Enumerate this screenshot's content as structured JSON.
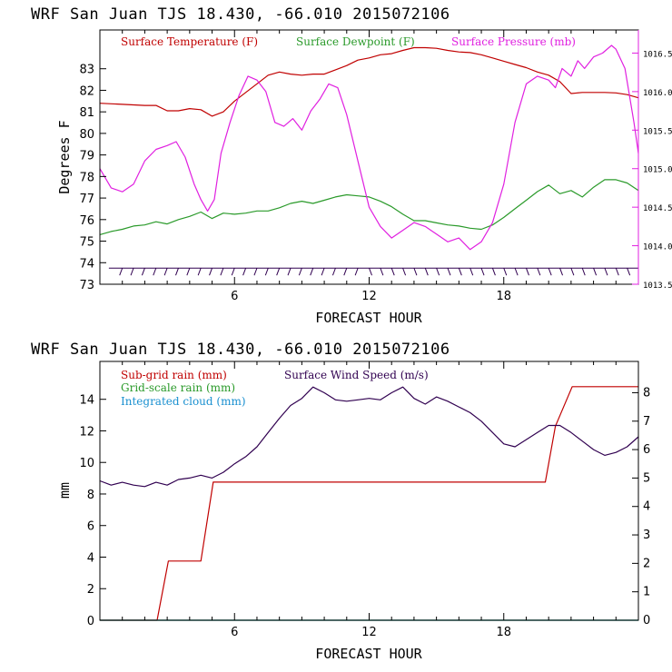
{
  "colors": {
    "temperature": "#c00000",
    "dewpoint": "#2a9a2a",
    "pressure": "#e020e0",
    "subgrid_rain": "#c00000",
    "gridscale_rain": "#2a9a2a",
    "cloud": "#1a90d0",
    "wind": "#300050",
    "barbs": "#300050"
  },
  "chart_data": [
    {
      "type": "line",
      "title": "WRF  San Juan TJS  18.430, -66.010  2015072106",
      "xlabel": "FORECAST HOUR",
      "ylabel": "Degrees F",
      "xlim": [
        0,
        24
      ],
      "ylim": [
        73,
        84.8
      ],
      "y2lim": [
        1013.5,
        1016.8
      ],
      "x_ticks": [
        6,
        12,
        18
      ],
      "y_ticks": [
        73,
        74,
        75,
        76,
        77,
        78,
        79,
        80,
        81,
        82,
        83
      ],
      "y2_ticks": [
        "1013.5",
        "1014.0",
        "1014.5",
        "1015.0",
        "1015.5",
        "1016.0",
        "1016.5"
      ],
      "y2_tick_values": [
        1013.5,
        1014.0,
        1014.5,
        1015.0,
        1015.5,
        1016.0,
        1016.5
      ],
      "legend": [
        "Surface Temperature (F)",
        "Surface Dewpoint (F)",
        "Surface Pressure (mb)"
      ],
      "wind_barbs_level": 73.75,
      "series": [
        {
          "name": "Surface Temperature (F)",
          "axis": "left",
          "x": [
            0,
            1,
            2,
            2.5,
            3,
            3.5,
            4,
            4.5,
            5,
            5.5,
            6,
            6.5,
            7,
            7.5,
            8,
            8.5,
            9,
            9.5,
            10,
            10.5,
            11,
            11.5,
            12,
            12.5,
            13,
            13.5,
            14,
            14.5,
            15,
            15.5,
            16,
            16.5,
            17,
            17.5,
            18,
            18.5,
            19,
            19.5,
            20,
            20.5,
            21,
            21.5,
            22,
            22.5,
            23,
            23.5,
            24
          ],
          "y": [
            81.4,
            81.35,
            81.3,
            81.3,
            81.05,
            81.05,
            81.15,
            81.1,
            80.8,
            81.0,
            81.5,
            81.9,
            82.3,
            82.7,
            82.85,
            82.75,
            82.7,
            82.75,
            82.75,
            82.95,
            83.15,
            83.4,
            83.5,
            83.65,
            83.7,
            83.85,
            83.98,
            83.98,
            83.95,
            83.85,
            83.78,
            83.75,
            83.65,
            83.5,
            83.35,
            83.2,
            83.05,
            82.85,
            82.7,
            82.4,
            81.85,
            81.9,
            81.9,
            81.9,
            81.88,
            81.8,
            81.65
          ]
        },
        {
          "name": "Surface Dewpoint (F)",
          "axis": "left",
          "x": [
            0,
            0.5,
            1,
            1.5,
            2,
            2.5,
            3,
            3.5,
            4,
            4.5,
            5,
            5.5,
            6,
            6.5,
            7,
            7.5,
            8,
            8.5,
            9,
            9.5,
            10,
            10.5,
            11,
            11.5,
            12,
            12.5,
            13,
            13.5,
            14,
            14.5,
            15,
            15.5,
            16,
            16.5,
            17,
            17.5,
            18,
            18.5,
            19,
            19.5,
            20,
            20.5,
            21,
            21.5,
            22,
            22.5,
            23,
            23.5,
            24
          ],
          "y": [
            75.3,
            75.45,
            75.55,
            75.7,
            75.75,
            75.9,
            75.8,
            76.0,
            76.15,
            76.35,
            76.05,
            76.3,
            76.25,
            76.3,
            76.4,
            76.4,
            76.55,
            76.75,
            76.85,
            76.75,
            76.9,
            77.05,
            77.15,
            77.1,
            77.05,
            76.85,
            76.6,
            76.25,
            75.95,
            75.95,
            75.85,
            75.75,
            75.7,
            75.6,
            75.55,
            75.75,
            76.1,
            76.5,
            76.9,
            77.3,
            77.6,
            77.2,
            77.35,
            77.05,
            77.5,
            77.85,
            77.85,
            77.7,
            77.35
          ]
        },
        {
          "name": "Surface Pressure (mb)",
          "axis": "right",
          "x": [
            0,
            0.5,
            1,
            1.5,
            2,
            2.5,
            3,
            3.4,
            3.8,
            4.2,
            4.5,
            4.8,
            5.1,
            5.4,
            5.8,
            6.2,
            6.6,
            7,
            7.4,
            7.8,
            8.2,
            8.6,
            9,
            9.4,
            9.8,
            10.2,
            10.6,
            11,
            11.5,
            12,
            12.5,
            13,
            13.5,
            14,
            14.5,
            15,
            15.5,
            16,
            16.5,
            17,
            17.5,
            18,
            18.5,
            19,
            19.5,
            20,
            20.3,
            20.6,
            21,
            21.3,
            21.6,
            22,
            22.4,
            22.8,
            23,
            23.4,
            23.8,
            24
          ],
          "y": [
            1015.0,
            1014.75,
            1014.7,
            1014.8,
            1015.1,
            1015.25,
            1015.3,
            1015.35,
            1015.15,
            1014.8,
            1014.6,
            1014.45,
            1014.6,
            1015.2,
            1015.6,
            1015.95,
            1016.2,
            1016.15,
            1016.0,
            1015.6,
            1015.55,
            1015.65,
            1015.5,
            1015.75,
            1015.9,
            1016.1,
            1016.05,
            1015.7,
            1015.1,
            1014.5,
            1014.25,
            1014.1,
            1014.2,
            1014.3,
            1014.25,
            1014.15,
            1014.05,
            1014.1,
            1013.95,
            1014.05,
            1014.3,
            1014.8,
            1015.6,
            1016.1,
            1016.2,
            1016.15,
            1016.05,
            1016.3,
            1016.2,
            1016.4,
            1016.3,
            1016.45,
            1016.5,
            1016.6,
            1016.55,
            1016.3,
            1015.6,
            1015.2
          ]
        }
      ]
    },
    {
      "type": "line",
      "title": "WRF  San Juan TJS  18.430, -66.010  2015072106",
      "xlabel": "FORECAST HOUR",
      "ylabel": "mm",
      "xlim": [
        0,
        24
      ],
      "ylim": [
        0,
        16.4
      ],
      "y2lim": [
        0,
        9.1
      ],
      "x_ticks": [
        6,
        12,
        18
      ],
      "y_ticks": [
        0,
        2,
        4,
        6,
        8,
        10,
        12,
        14
      ],
      "y2_ticks": [
        0,
        1,
        2,
        3,
        4,
        5,
        6,
        7,
        8
      ],
      "legend": [
        "Sub-grid rain (mm)",
        "Grid-scale rain (mm)",
        "Integrated cloud (mm)",
        "Surface Wind Speed (m/s)"
      ],
      "series": [
        {
          "name": "Sub-grid rain (mm)",
          "axis": "left",
          "x": [
            0,
            2.55,
            3.05,
            4.5,
            5.05,
            19.85,
            20.3,
            21.05,
            24
          ],
          "y": [
            0,
            0,
            3.75,
            3.75,
            8.75,
            8.75,
            12.3,
            14.8,
            14.8
          ]
        },
        {
          "name": "Grid-scale rain (mm)",
          "axis": "left",
          "x": [
            0,
            24
          ],
          "y": [
            0,
            0
          ]
        },
        {
          "name": "Integrated cloud (mm)",
          "axis": "left",
          "x": [
            0,
            24
          ],
          "y": [
            0,
            0
          ]
        },
        {
          "name": "Surface Wind Speed (m/s)",
          "axis": "right",
          "x": [
            0,
            0.5,
            1,
            1.5,
            2,
            2.5,
            3,
            3.5,
            4,
            4.5,
            5,
            5.5,
            6,
            6.5,
            7,
            7.5,
            8,
            8.5,
            9,
            9.5,
            10,
            10.5,
            11,
            11.5,
            12,
            12.5,
            13,
            13.5,
            14,
            14.5,
            15,
            15.5,
            16,
            16.5,
            17,
            17.5,
            18,
            18.5,
            19,
            19.5,
            20,
            20.5,
            21,
            21.5,
            22,
            22.5,
            23,
            23.5,
            24
          ],
          "y": [
            4.9,
            4.75,
            4.85,
            4.75,
            4.7,
            4.85,
            4.75,
            4.95,
            5.0,
            5.1,
            5.0,
            5.2,
            5.5,
            5.75,
            6.1,
            6.6,
            7.1,
            7.55,
            7.8,
            8.2,
            8.0,
            7.75,
            7.7,
            7.75,
            7.8,
            7.75,
            8.0,
            8.2,
            7.8,
            7.6,
            7.85,
            7.7,
            7.5,
            7.3,
            7.0,
            6.6,
            6.2,
            6.1,
            6.35,
            6.6,
            6.85,
            6.85,
            6.6,
            6.3,
            6.0,
            5.8,
            5.9,
            6.1,
            6.45
          ]
        }
      ]
    }
  ]
}
